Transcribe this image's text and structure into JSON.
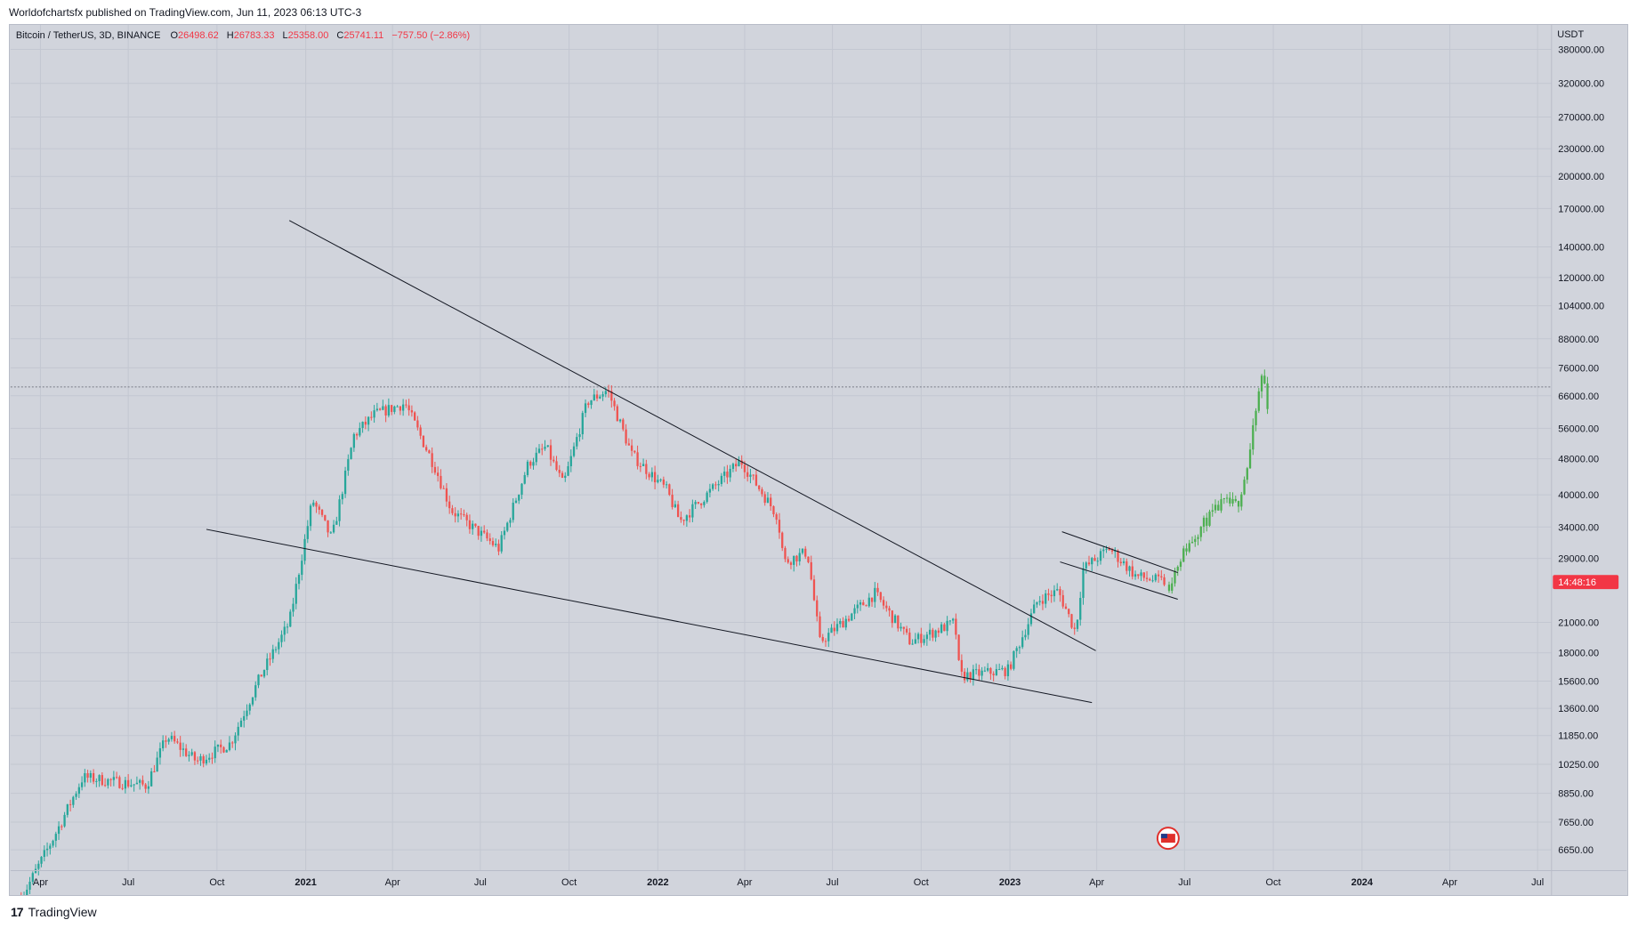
{
  "header": {
    "published": "Worldofchartsfx published on TradingView.com, Jun 11, 2023 06:13 UTC-3"
  },
  "legend": {
    "symbol": "Bitcoin / TetherUS, 3D, BINANCE",
    "o_label": "O",
    "o_value": "26498.62",
    "h_label": "H",
    "h_value": "26783.33",
    "l_label": "L",
    "l_value": "25358.00",
    "c_label": "C",
    "c_value": "25741.11",
    "change": "−757.50 (−2.86%)"
  },
  "footer": {
    "brand": "TradingView",
    "logo": "17"
  },
  "colors": {
    "up": "#26a69a",
    "down": "#ef5350",
    "projection": "#4caf50",
    "background": "#d1d4dc",
    "price_tag": "#f23645"
  },
  "chart_data": {
    "type": "candlestick",
    "scale": "log",
    "currency": "USDT",
    "y_ticks": [
      "380000.00",
      "320000.00",
      "270000.00",
      "230000.00",
      "200000.00",
      "170000.00",
      "140000.00",
      "120000.00",
      "104000.00",
      "88000.00",
      "76000.00",
      "66000.00",
      "56000.00",
      "48000.00",
      "40000.00",
      "34000.00",
      "29000.00",
      "21000.00",
      "18000.00",
      "15600.00",
      "13600.00",
      "11850.00",
      "10250.00",
      "8850.00",
      "7650.00",
      "6650.00"
    ],
    "y_tick_values": [
      380000,
      320000,
      270000,
      230000,
      200000,
      170000,
      140000,
      120000,
      104000,
      88000,
      76000,
      66000,
      56000,
      48000,
      40000,
      34000,
      29000,
      21000,
      18000,
      15600,
      13600,
      11850,
      10250,
      8850,
      7650,
      6650
    ],
    "x_ticks": [
      {
        "label": "Apr",
        "date": "2020-04-01",
        "bold": false
      },
      {
        "label": "Jul",
        "date": "2020-07-01",
        "bold": false
      },
      {
        "label": "Oct",
        "date": "2020-10-01",
        "bold": false
      },
      {
        "label": "2021",
        "date": "2021-01-01",
        "bold": true
      },
      {
        "label": "Apr",
        "date": "2021-04-01",
        "bold": false
      },
      {
        "label": "Jul",
        "date": "2021-07-01",
        "bold": false
      },
      {
        "label": "Oct",
        "date": "2021-10-01",
        "bold": false
      },
      {
        "label": "2022",
        "date": "2022-01-01",
        "bold": true
      },
      {
        "label": "Apr",
        "date": "2022-04-01",
        "bold": false
      },
      {
        "label": "Jul",
        "date": "2022-07-01",
        "bold": false
      },
      {
        "label": "Oct",
        "date": "2022-10-01",
        "bold": false
      },
      {
        "label": "2023",
        "date": "2023-01-01",
        "bold": true
      },
      {
        "label": "Apr",
        "date": "2023-04-01",
        "bold": false
      },
      {
        "label": "Jul",
        "date": "2023-07-01",
        "bold": false
      },
      {
        "label": "Oct",
        "date": "2023-10-01",
        "bold": false
      },
      {
        "label": "2024",
        "date": "2024-01-01",
        "bold": true
      },
      {
        "label": "Apr",
        "date": "2024-04-01",
        "bold": false
      },
      {
        "label": "Jul",
        "date": "2024-07-01",
        "bold": false
      }
    ],
    "x_range": [
      "2020-03-01",
      "2024-07-15"
    ],
    "y_range": [
      6000,
      430000
    ],
    "price_path": [
      {
        "date": "2020-03-12",
        "price": 5200
      },
      {
        "date": "2020-04-15",
        "price": 7100
      },
      {
        "date": "2020-05-15",
        "price": 9600
      },
      {
        "date": "2020-06-15",
        "price": 9400
      },
      {
        "date": "2020-07-20",
        "price": 9200
      },
      {
        "date": "2020-08-10",
        "price": 11800
      },
      {
        "date": "2020-09-10",
        "price": 10400
      },
      {
        "date": "2020-10-15",
        "price": 11400
      },
      {
        "date": "2020-11-15",
        "price": 16000
      },
      {
        "date": "2020-12-15",
        "price": 21000
      },
      {
        "date": "2021-01-08",
        "price": 39000
      },
      {
        "date": "2021-01-28",
        "price": 32000
      },
      {
        "date": "2021-02-20",
        "price": 54000
      },
      {
        "date": "2021-03-13",
        "price": 60000
      },
      {
        "date": "2021-04-14",
        "price": 63500
      },
      {
        "date": "2021-05-15",
        "price": 46000
      },
      {
        "date": "2021-06-01",
        "price": 37000
      },
      {
        "date": "2021-07-20",
        "price": 30500
      },
      {
        "date": "2021-08-20",
        "price": 47000
      },
      {
        "date": "2021-09-07",
        "price": 51000
      },
      {
        "date": "2021-09-25",
        "price": 42000
      },
      {
        "date": "2021-10-20",
        "price": 64000
      },
      {
        "date": "2021-11-10",
        "price": 68000
      },
      {
        "date": "2021-12-05",
        "price": 49000
      },
      {
        "date": "2022-01-10",
        "price": 41000
      },
      {
        "date": "2022-01-24",
        "price": 35000
      },
      {
        "date": "2022-03-28",
        "price": 47500
      },
      {
        "date": "2022-05-05",
        "price": 36000
      },
      {
        "date": "2022-05-12",
        "price": 28500
      },
      {
        "date": "2022-06-05",
        "price": 30000
      },
      {
        "date": "2022-06-18",
        "price": 19000
      },
      {
        "date": "2022-08-14",
        "price": 24300
      },
      {
        "date": "2022-09-20",
        "price": 19000
      },
      {
        "date": "2022-11-05",
        "price": 21000
      },
      {
        "date": "2022-11-10",
        "price": 16000
      },
      {
        "date": "2022-12-30",
        "price": 16500
      },
      {
        "date": "2023-01-30",
        "price": 23500
      },
      {
        "date": "2023-02-20",
        "price": 24600
      },
      {
        "date": "2023-03-10",
        "price": 20000
      },
      {
        "date": "2023-03-18",
        "price": 27500
      },
      {
        "date": "2023-04-14",
        "price": 30500
      },
      {
        "date": "2023-05-12",
        "price": 26500
      },
      {
        "date": "2023-06-11",
        "price": 25741.11
      }
    ],
    "projection_path": [
      {
        "date": "2023-06-15",
        "price": 25400
      },
      {
        "date": "2023-06-28",
        "price": 29500
      },
      {
        "date": "2023-07-20",
        "price": 34500
      },
      {
        "date": "2023-08-10",
        "price": 38500
      },
      {
        "date": "2023-08-25",
        "price": 38000
      },
      {
        "date": "2023-09-05",
        "price": 47000
      },
      {
        "date": "2023-09-15",
        "price": 65000
      },
      {
        "date": "2023-09-20",
        "price": 75000
      },
      {
        "date": "2023-09-25",
        "price": 63000
      }
    ],
    "trendlines": [
      {
        "name": "upper-trendline",
        "from": {
          "date": "2020-12-15",
          "price": 160000
        },
        "to": {
          "date": "2023-03-31",
          "price": 18200
        }
      },
      {
        "name": "lower-trendline",
        "from": {
          "date": "2020-09-20",
          "price": 33600
        },
        "to": {
          "date": "2023-03-27",
          "price": 14000
        }
      },
      {
        "name": "flag-upper-line",
        "from": {
          "date": "2023-02-24",
          "price": 33200
        },
        "to": {
          "date": "2023-06-24",
          "price": 27000
        }
      },
      {
        "name": "flag-lower-line",
        "from": {
          "date": "2023-02-22",
          "price": 28500
        },
        "to": {
          "date": "2023-06-24",
          "price": 23600
        }
      }
    ],
    "dotted_level": 69000,
    "last_price": 25741.11,
    "countdown": "14:48:16",
    "event_flag": {
      "date": "2023-06-14"
    }
  }
}
